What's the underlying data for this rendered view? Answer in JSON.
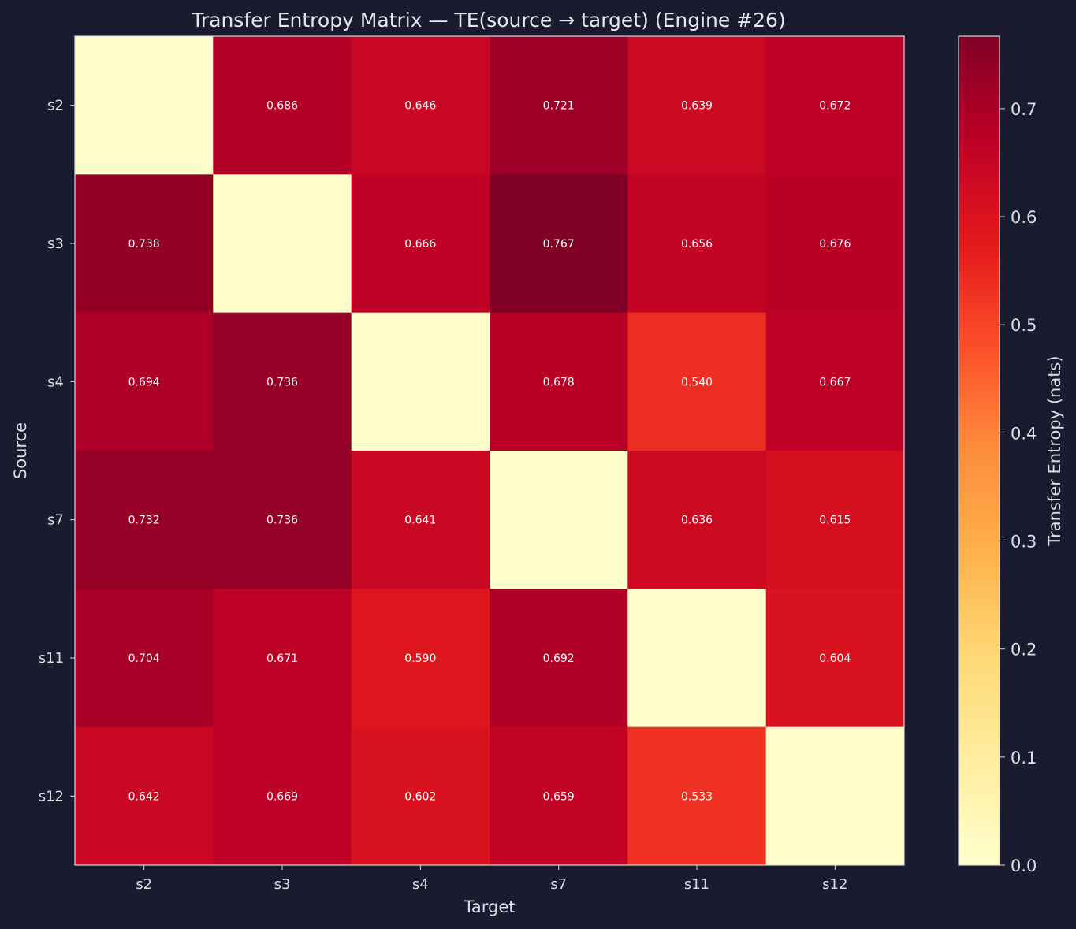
{
  "chart_data": {
    "type": "heatmap",
    "title": "Transfer Entropy Matrix — TE(source → target) (Engine #26)",
    "xlabel": "Target",
    "ylabel": "Source",
    "x_categories": [
      "s2",
      "s3",
      "s4",
      "s7",
      "s11",
      "s12"
    ],
    "y_categories": [
      "s2",
      "s3",
      "s4",
      "s7",
      "s11",
      "s12"
    ],
    "values": [
      [
        0.0,
        0.686,
        0.646,
        0.721,
        0.639,
        0.672
      ],
      [
        0.738,
        0.0,
        0.666,
        0.767,
        0.656,
        0.676
      ],
      [
        0.694,
        0.736,
        0.0,
        0.678,
        0.54,
        0.667
      ],
      [
        0.732,
        0.736,
        0.641,
        0.0,
        0.636,
        0.615
      ],
      [
        0.704,
        0.671,
        0.59,
        0.692,
        0.0,
        0.604
      ],
      [
        0.642,
        0.669,
        0.602,
        0.659,
        0.533,
        0.0
      ]
    ],
    "cell_labels": [
      [
        "",
        "0.686",
        "0.646",
        "0.721",
        "0.639",
        "0.672"
      ],
      [
        "0.738",
        "",
        "0.666",
        "0.767",
        "0.656",
        "0.676"
      ],
      [
        "0.694",
        "0.736",
        "",
        "0.678",
        "0.540",
        "0.667"
      ],
      [
        "0.732",
        "0.736",
        "0.641",
        "",
        "0.636",
        "0.615"
      ],
      [
        "0.704",
        "0.671",
        "0.590",
        "0.692",
        "",
        "0.604"
      ],
      [
        "0.642",
        "0.669",
        "0.602",
        "0.659",
        "0.533",
        ""
      ]
    ],
    "colorbar": {
      "label": "Transfer Entropy (nats)",
      "range": [
        0.0,
        0.767
      ],
      "ticks": [
        "0.0",
        "0.1",
        "0.2",
        "0.3",
        "0.4",
        "0.5",
        "0.6",
        "0.7"
      ],
      "colormap": "YlOrRd"
    },
    "colors": {
      "background": "#1a1b2e",
      "text": "#dcdce6",
      "frame": "#d9d9e0"
    }
  }
}
